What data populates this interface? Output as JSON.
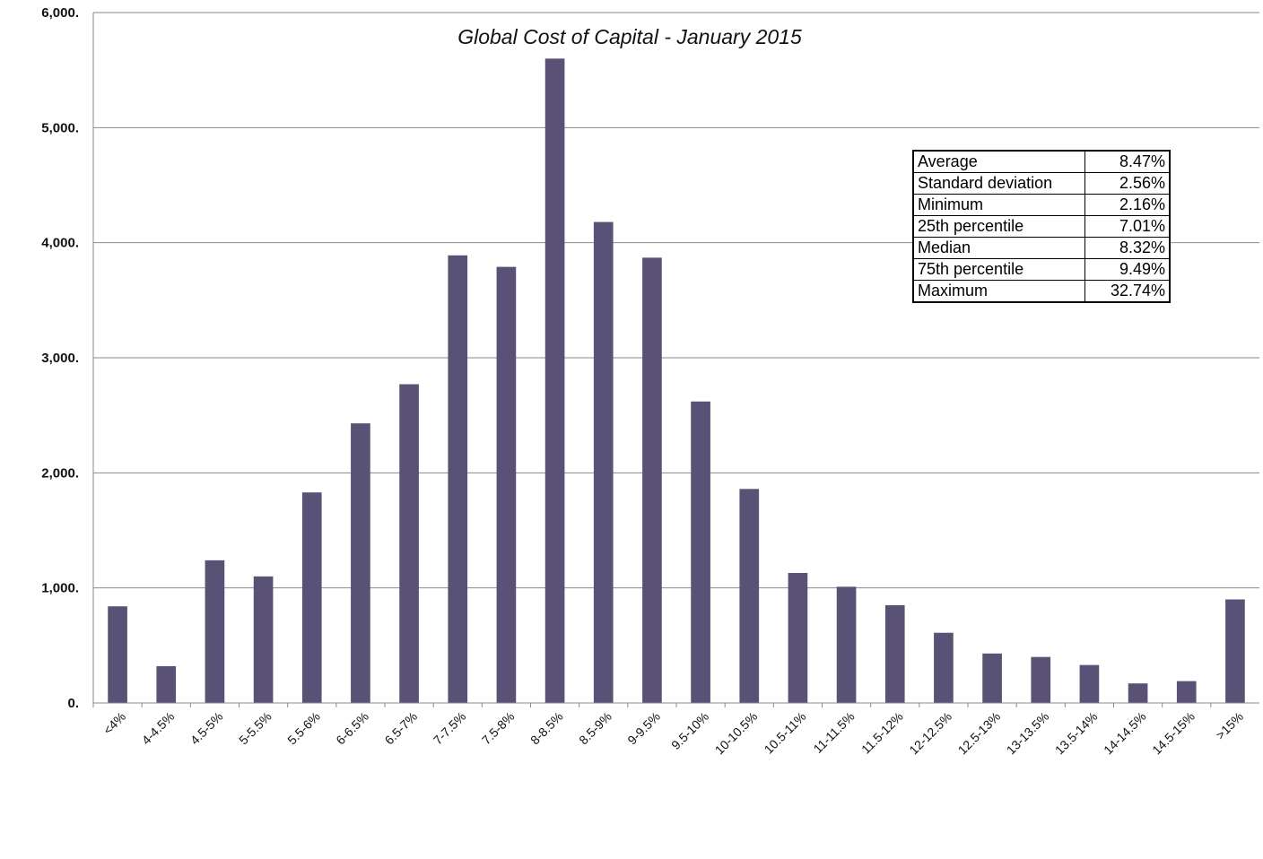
{
  "chart_data": {
    "type": "bar",
    "title": "Global Cost of Capital - January 2015",
    "xlabel": "",
    "ylabel": "",
    "ylim": [
      0,
      6000
    ],
    "yticks": [
      "0.",
      "1,000.",
      "2,000.",
      "3,000.",
      "4,000.",
      "5,000.",
      "6,000."
    ],
    "ytick_values": [
      0,
      1000,
      2000,
      3000,
      4000,
      5000,
      6000
    ],
    "grid": true,
    "legend": "none",
    "categories": [
      "<4%",
      "4-4.5%",
      "4.5-5%",
      "5-5.5%",
      "5.5-6%",
      "6-6.5%",
      "6.5-7%",
      "7-7.5%",
      "7.5-8%",
      "8-8.5%",
      "8.5-9%",
      "9-9.5%",
      "9.5-10%",
      "10-10.5%",
      "10.5-11%",
      "11-11.5%",
      "11.5-12%",
      "12-12.5%",
      "12.5-13%",
      "13-13.5%",
      "13.5-14%",
      "14-14.5%",
      "14.5-15%",
      ">15%"
    ],
    "values": [
      840,
      320,
      1240,
      1100,
      1830,
      2430,
      2770,
      3890,
      3790,
      5600,
      4180,
      3870,
      2620,
      1860,
      1130,
      1010,
      850,
      610,
      430,
      400,
      330,
      170,
      190,
      900
    ],
    "colors": {
      "bar": "#5a5276",
      "gridline": "#8a8a8a"
    }
  },
  "stats_table": {
    "rows": [
      {
        "label": "Average",
        "value": "8.47%"
      },
      {
        "label": "Standard deviation",
        "value": "2.56%"
      },
      {
        "label": "Minimum",
        "value": "2.16%"
      },
      {
        "label": "25th percentile",
        "value": "7.01%"
      },
      {
        "label": "Median",
        "value": "8.32%"
      },
      {
        "label": "75th percentile",
        "value": "9.49%"
      },
      {
        "label": "Maximum",
        "value": "32.74%"
      }
    ]
  }
}
